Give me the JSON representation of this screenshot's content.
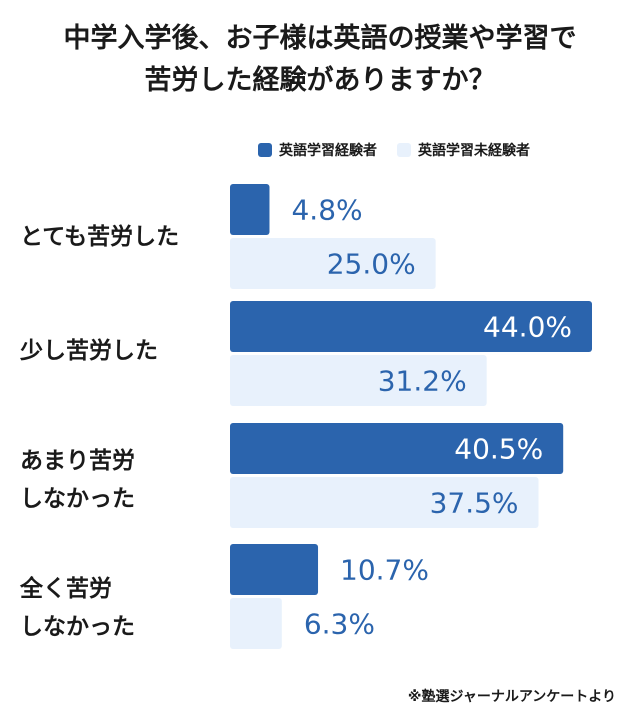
{
  "title_lines": [
    "中学入学後、お子様は英語の授業や学習で",
    "苦労した経験がありますか？"
  ],
  "footnote": "※塾選ジャーナルアンケートより",
  "colors": {
    "series1": "#2b64ad",
    "series2": "#e8f1fc",
    "label_dark": "#2b64ad",
    "label_light": "#ffffff"
  },
  "chart_data": {
    "type": "bar",
    "orientation": "horizontal",
    "categories": [
      "とても苦労した",
      "少し苦労した",
      "あまり苦労しなかった",
      "全く苦労しなかった"
    ],
    "category_lines": [
      [
        "とても苦労した"
      ],
      [
        "少し苦労した"
      ],
      [
        "あまり苦労",
        "しなかった"
      ],
      [
        "全く苦労",
        "しなかった"
      ]
    ],
    "series": [
      {
        "name": "英語学習経験者",
        "values": [
          4.8,
          44.0,
          40.5,
          10.7
        ]
      },
      {
        "name": "英語学習未経験者",
        "values": [
          25.0,
          31.2,
          37.5,
          6.3
        ]
      }
    ],
    "value_labels": [
      [
        "4.8%",
        "44.0%",
        "40.5%",
        "10.7%"
      ],
      [
        "25.0%",
        "31.2%",
        "37.5%",
        "6.3%"
      ]
    ],
    "xlim": [
      0,
      44
    ],
    "legend": "top"
  }
}
